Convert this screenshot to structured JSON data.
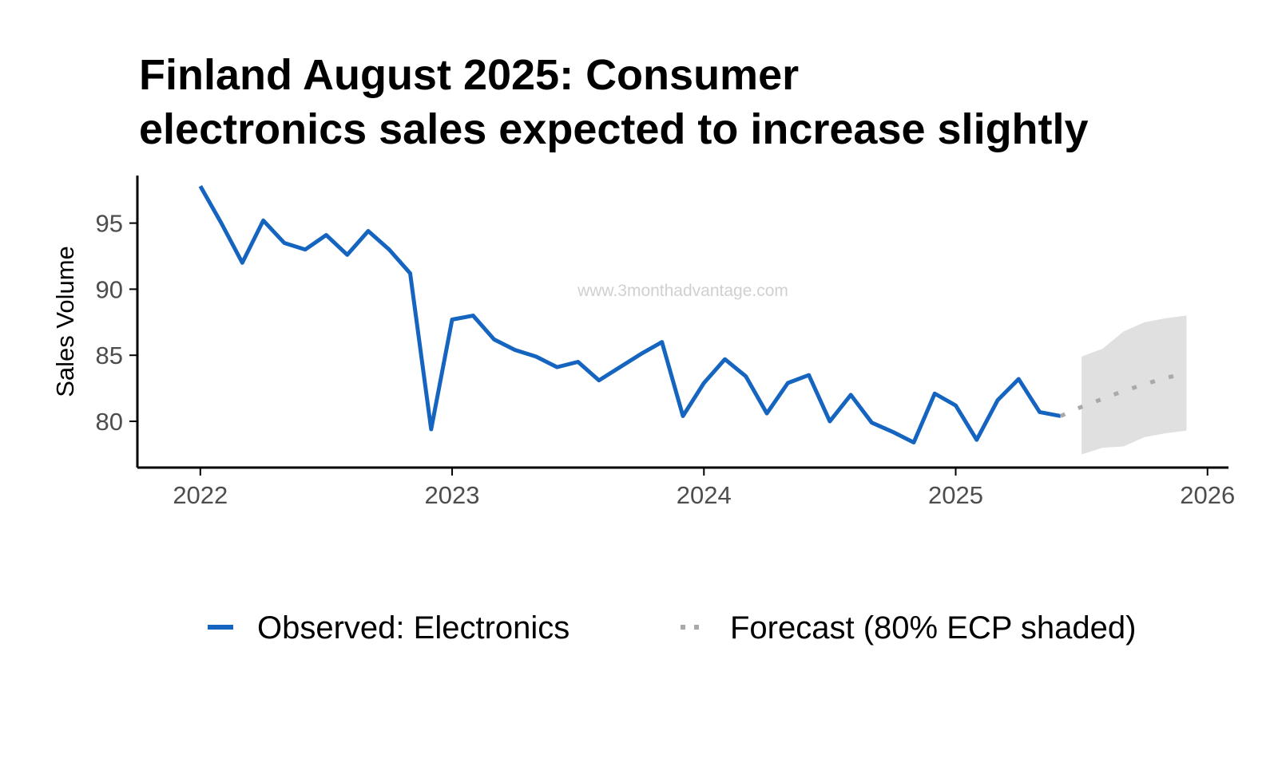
{
  "chart_data": {
    "type": "line",
    "title_lines": [
      "Finland August 2025: Consumer",
      "electronics sales expected to increase slightly"
    ],
    "xlabel": "",
    "ylabel": "Sales Volume",
    "x_ticks": [
      "2022",
      "2023",
      "2024",
      "2025",
      "2026"
    ],
    "y_ticks": [
      "80",
      "85",
      "90",
      "95"
    ],
    "xlim": [
      "2021-10",
      "2026-02"
    ],
    "ylim": [
      76.5,
      98.6
    ],
    "grid": false,
    "legend_position": "bottom",
    "watermark": "www.3monthadvantage.com",
    "colors": {
      "observed": "#1565c0",
      "forecast": "#a9a9a9",
      "band": "#e0e0e0"
    },
    "series": [
      {
        "name": "Observed: Electronics",
        "style": "solid",
        "x": [
          "2022-01",
          "2022-02",
          "2022-03",
          "2022-04",
          "2022-05",
          "2022-06",
          "2022-07",
          "2022-08",
          "2022-09",
          "2022-10",
          "2022-11",
          "2022-12",
          "2023-01",
          "2023-02",
          "2023-03",
          "2023-04",
          "2023-05",
          "2023-06",
          "2023-07",
          "2023-08",
          "2023-09",
          "2023-10",
          "2023-11",
          "2023-12",
          "2024-01",
          "2024-02",
          "2024-03",
          "2024-04",
          "2024-05",
          "2024-06",
          "2024-07",
          "2024-08",
          "2024-09",
          "2024-10",
          "2024-11",
          "2024-12",
          "2025-01",
          "2025-02",
          "2025-03",
          "2025-04",
          "2025-05",
          "2025-06"
        ],
        "values": [
          97.8,
          95.0,
          92.0,
          95.2,
          93.5,
          93.0,
          94.1,
          92.6,
          94.4,
          93.0,
          91.2,
          79.4,
          87.7,
          88.0,
          86.2,
          85.4,
          84.9,
          84.1,
          84.5,
          83.1,
          84.1,
          85.1,
          86.0,
          80.4,
          82.9,
          84.7,
          83.4,
          80.6,
          82.9,
          83.5,
          80.0,
          82.0,
          79.9,
          79.2,
          78.4,
          82.1,
          81.2,
          78.6,
          81.6,
          83.2,
          80.7,
          80.4
        ]
      },
      {
        "name": "Forecast (80% ECP shaded)",
        "style": "dotted",
        "x": [
          "2025-06",
          "2025-07",
          "2025-08",
          "2025-09",
          "2025-10",
          "2025-11",
          "2025-12"
        ],
        "values": [
          80.4,
          81.1,
          81.7,
          82.3,
          82.8,
          83.3,
          83.6
        ],
        "band_x": [
          "2025-07",
          "2025-08",
          "2025-09",
          "2025-10",
          "2025-11",
          "2025-12"
        ],
        "band_lower": [
          77.5,
          78.0,
          78.1,
          78.8,
          79.1,
          79.3
        ],
        "band_upper": [
          84.9,
          85.5,
          86.8,
          87.5,
          87.8,
          88.0
        ]
      }
    ]
  }
}
